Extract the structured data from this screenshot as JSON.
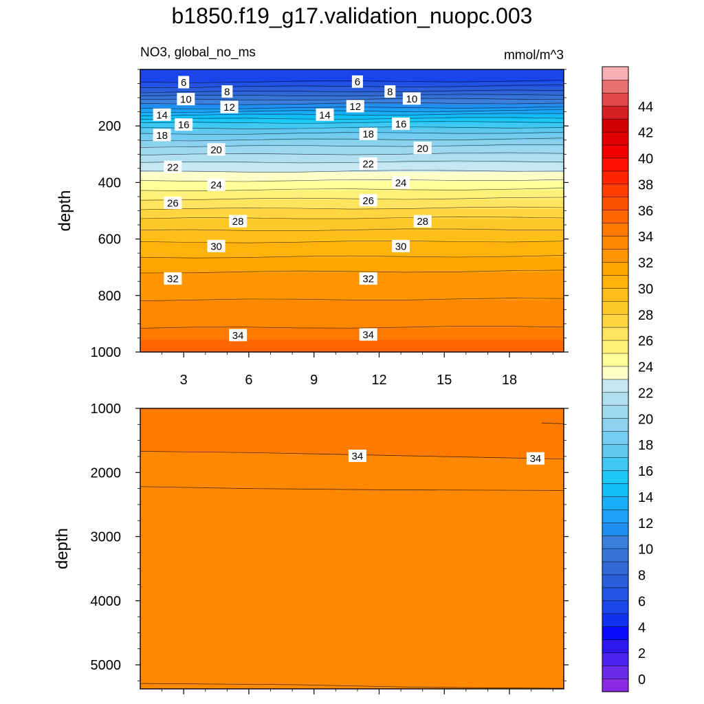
{
  "title": "b1850.f19_g17.validation_nuopc.003",
  "subtitle_left": "NO3, global_no_ms",
  "subtitle_right": "mmol/m^3",
  "chart_data": {
    "type": "heatmap",
    "title": "b1850.f19_g17.validation_nuopc.003",
    "variable": "NO3, global_no_ms",
    "units": "mmol/m^3",
    "x": {
      "range": [
        1,
        20.5
      ],
      "ticks": [
        3,
        6,
        9,
        12,
        15,
        18
      ],
      "tick_labels": [
        "3",
        "6",
        "9",
        "12",
        "15",
        "18"
      ]
    },
    "upper_panel": {
      "ylabel": "depth",
      "ylim": [
        0,
        1000
      ],
      "y_inverted": true,
      "y_ticks": [
        200,
        400,
        600,
        800,
        1000
      ],
      "y_tick_labels": [
        "200",
        "400",
        "600",
        "800",
        "1000"
      ],
      "contour_depths": [
        {
          "level": 6,
          "depth": 45
        },
        {
          "level": 8,
          "depth": 80
        },
        {
          "level": 10,
          "depth": 108
        },
        {
          "level": 12,
          "depth": 138
        },
        {
          "level": 14,
          "depth": 162
        },
        {
          "level": 16,
          "depth": 190
        },
        {
          "level": 18,
          "depth": 228
        },
        {
          "level": 20,
          "depth": 273
        },
        {
          "level": 22,
          "depth": 330
        },
        {
          "level": 24,
          "depth": 395
        },
        {
          "level": 26,
          "depth": 460
        },
        {
          "level": 28,
          "depth": 528
        },
        {
          "level": 30,
          "depth": 612
        },
        {
          "level": 32,
          "depth": 718
        },
        {
          "level": 34,
          "depth": 915
        }
      ],
      "labels": [
        {
          "text": "6",
          "x": 3.0,
          "depth": 45
        },
        {
          "text": "6",
          "x": 11.0,
          "depth": 43
        },
        {
          "text": "8",
          "x": 5.0,
          "depth": 78
        },
        {
          "text": "8",
          "x": 12.5,
          "depth": 78
        },
        {
          "text": "10",
          "x": 3.1,
          "depth": 105
        },
        {
          "text": "10",
          "x": 13.5,
          "depth": 103
        },
        {
          "text": "12",
          "x": 5.1,
          "depth": 133
        },
        {
          "text": "12",
          "x": 10.9,
          "depth": 130
        },
        {
          "text": "14",
          "x": 2.0,
          "depth": 160
        },
        {
          "text": "14",
          "x": 9.5,
          "depth": 160
        },
        {
          "text": "16",
          "x": 3.0,
          "depth": 195
        },
        {
          "text": "16",
          "x": 13.0,
          "depth": 192
        },
        {
          "text": "18",
          "x": 2.0,
          "depth": 232
        },
        {
          "text": "18",
          "x": 11.5,
          "depth": 228
        },
        {
          "text": "20",
          "x": 4.5,
          "depth": 283
        },
        {
          "text": "20",
          "x": 14.0,
          "depth": 278
        },
        {
          "text": "22",
          "x": 2.5,
          "depth": 345
        },
        {
          "text": "22",
          "x": 11.5,
          "depth": 333
        },
        {
          "text": "24",
          "x": 4.5,
          "depth": 408
        },
        {
          "text": "24",
          "x": 13.0,
          "depth": 400
        },
        {
          "text": "26",
          "x": 2.5,
          "depth": 472
        },
        {
          "text": "26",
          "x": 11.5,
          "depth": 463
        },
        {
          "text": "28",
          "x": 5.5,
          "depth": 537
        },
        {
          "text": "28",
          "x": 14.0,
          "depth": 537
        },
        {
          "text": "30",
          "x": 4.5,
          "depth": 625
        },
        {
          "text": "30",
          "x": 13.0,
          "depth": 625
        },
        {
          "text": "32",
          "x": 2.5,
          "depth": 740
        },
        {
          "text": "32",
          "x": 11.5,
          "depth": 740
        },
        {
          "text": "34",
          "x": 5.5,
          "depth": 940
        },
        {
          "text": "34",
          "x": 11.5,
          "depth": 938
        }
      ]
    },
    "lower_panel": {
      "ylabel": "depth",
      "ylim": [
        1000,
        5375
      ],
      "y_inverted": true,
      "y_ticks": [
        1000,
        2000,
        3000,
        4000,
        5000
      ],
      "y_tick_labels": [
        "1000",
        "2000",
        "3000",
        "4000",
        "5000"
      ],
      "contour_lines": [
        {
          "level": 34,
          "points": [
            [
              1,
              1670
            ],
            [
              6,
              1690
            ],
            [
              12,
              1730
            ],
            [
              20.5,
              1790
            ]
          ]
        },
        {
          "level": 34,
          "points": [
            [
              1,
              2220
            ],
            [
              6,
              2250
            ],
            [
              12,
              2270
            ],
            [
              20.5,
              2280
            ]
          ]
        },
        {
          "level": 34,
          "points": [
            [
              1,
              5290
            ],
            [
              8,
              5310
            ],
            [
              14,
              5350
            ],
            [
              20.5,
              5365
            ]
          ]
        },
        {
          "level": 34,
          "points": [
            [
              19.5,
              1230
            ],
            [
              20.5,
              1240
            ]
          ]
        }
      ],
      "labels": [
        {
          "text": "34",
          "x": 11.0,
          "depth": 1740
        },
        {
          "text": "34",
          "x": 19.2,
          "depth": 1780
        }
      ]
    },
    "colorbar": {
      "levels": [
        0,
        2,
        4,
        6,
        8,
        10,
        12,
        14,
        16,
        18,
        20,
        22,
        24,
        26,
        28,
        30,
        32,
        34,
        36,
        38,
        40,
        42,
        44
      ],
      "tick_labels": [
        "0",
        "2",
        "4",
        "6",
        "8",
        "10",
        "12",
        "14",
        "16",
        "18",
        "20",
        "22",
        "24",
        "26",
        "28",
        "30",
        "32",
        "34",
        "36",
        "38",
        "40",
        "42",
        "44"
      ],
      "range": [
        -1,
        46
      ],
      "step": 1,
      "colors": [
        "#8a2be2",
        "#6a2ae8",
        "#4b22ee",
        "#2d17f3",
        "#0b0bfb",
        "#1230f0",
        "#1a45ea",
        "#2253e4",
        "#2a5edc",
        "#3068d6",
        "#3674d7",
        "#3a80dc",
        "#1e8ff0",
        "#1aa0f5",
        "#18aff8",
        "#10bef8",
        "#1ec8f6",
        "#3fc9f2",
        "#5ec8f0",
        "#74cdf0",
        "#8ad2ee",
        "#9ed8ee",
        "#b0e0ef",
        "#c6e8f2",
        "#ffffc8",
        "#ffff9a",
        "#fff07a",
        "#ffe460",
        "#ffd640",
        "#ffca28",
        "#ffbf18",
        "#ffb20c",
        "#ffa400",
        "#ff9600",
        "#ff8800",
        "#ff7a00",
        "#ff6600",
        "#ff5200",
        "#ff3e00",
        "#ff2600",
        "#ff1000",
        "#f20000",
        "#e00000",
        "#d00000",
        "#d42020",
        "#e04848",
        "#ea7070",
        "#f8b0b4"
      ]
    }
  }
}
